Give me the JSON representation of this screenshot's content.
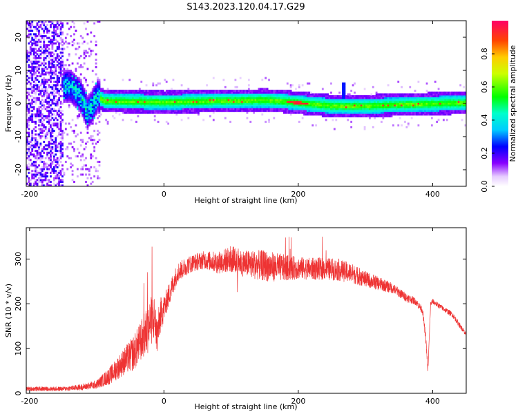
{
  "title": "S143.2023.120.04.17.G29",
  "chart_data": [
    {
      "type": "heatmap",
      "xlabel": "Height of straight line (km)",
      "ylabel": "Frequency (Hz)",
      "xlim": [
        -205,
        450
      ],
      "ylim": [
        -25,
        25
      ],
      "xticks": [
        "-200",
        "0",
        "200",
        "400"
      ],
      "yticks": [
        "20",
        "10",
        "0",
        "-10",
        "-20"
      ],
      "colorbar": {
        "label": "Normalized spectral amplitude",
        "ticks": [
          "0.0",
          "0.2",
          "0.4",
          "0.6",
          "0.8"
        ],
        "range": [
          0,
          1
        ]
      },
      "ridge": [
        {
          "x": -140,
          "f": 5
        },
        {
          "x": -125,
          "f": 2
        },
        {
          "x": -115,
          "f": -3
        },
        {
          "x": -108,
          "f": -1
        },
        {
          "x": -100,
          "f": 2
        },
        {
          "x": -90,
          "f": 0.5
        },
        {
          "x": 0,
          "f": 0.2
        },
        {
          "x": 100,
          "f": 0.6
        },
        {
          "x": 150,
          "f": 0.8
        },
        {
          "x": 190,
          "f": 0.2
        },
        {
          "x": 200,
          "f": 0
        },
        {
          "x": 250,
          "f": -1
        },
        {
          "x": 300,
          "f": -1
        },
        {
          "x": 350,
          "f": -0.6
        },
        {
          "x": 400,
          "f": -0.3
        },
        {
          "x": 450,
          "f": 0
        }
      ],
      "grid": false
    },
    {
      "type": "line",
      "xlabel": "Height of straight line (km)",
      "ylabel": "SNR (10 * v/v)",
      "xlim": [
        -205,
        450
      ],
      "ylim": [
        0,
        370
      ],
      "xticks": [
        "-200",
        "0",
        "200",
        "400"
      ],
      "yticks": [
        "300",
        "200",
        "100",
        "0"
      ],
      "series": [
        {
          "color": "#ee3333",
          "x": [
            -205,
            -150,
            -120,
            -100,
            -80,
            -60,
            -45,
            -35,
            -25,
            -20,
            -15,
            -10,
            -5,
            0,
            10,
            20,
            40,
            60,
            80,
            100,
            120,
            150,
            180,
            200,
            220,
            240,
            260,
            280,
            300,
            320,
            340,
            360,
            375,
            385,
            390,
            393,
            397,
            400,
            410,
            430,
            450
          ],
          "y": [
            10,
            10,
            14,
            20,
            40,
            70,
            90,
            115,
            140,
            160,
            170,
            130,
            175,
            190,
            230,
            270,
            290,
            298,
            292,
            300,
            290,
            285,
            280,
            280,
            278,
            278,
            276,
            268,
            255,
            245,
            235,
            215,
            205,
            185,
            120,
            50,
            200,
            205,
            195,
            175,
            130
          ],
          "noise": [
            5,
            5,
            7,
            10,
            20,
            30,
            40,
            45,
            55,
            55,
            55,
            45,
            40,
            30,
            25,
            22,
            20,
            20,
            25,
            30,
            30,
            35,
            30,
            25,
            25,
            25,
            25,
            22,
            18,
            15,
            12,
            10,
            8,
            8,
            10,
            5,
            6,
            6,
            6,
            6,
            6
          ]
        }
      ],
      "grid": false
    }
  ]
}
